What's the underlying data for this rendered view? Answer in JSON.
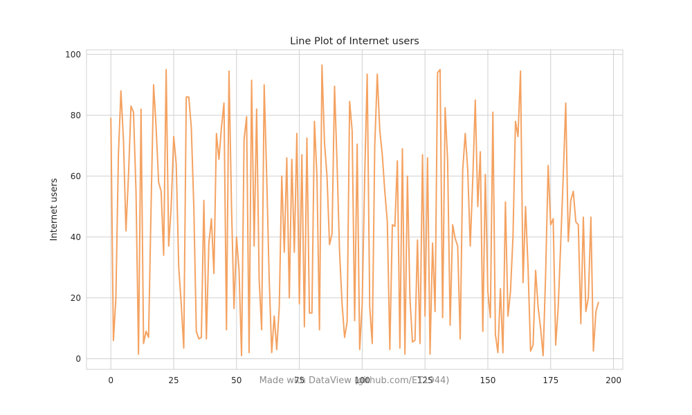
{
  "chart_data": {
    "type": "line",
    "title": "Line Plot of Internet users",
    "xlabel": "",
    "ylabel": "Internet users",
    "xlim": [
      -9.7,
      203.7
    ],
    "ylim": [
      -3.5,
      101.5
    ],
    "xticks": [
      0,
      25,
      50,
      75,
      100,
      125,
      150,
      175,
      200
    ],
    "yticks": [
      0,
      20,
      40,
      60,
      80,
      100
    ],
    "xtick_labels": [
      "0",
      "25",
      "50",
      "75",
      "100",
      "125",
      "150",
      "175",
      "200"
    ],
    "ytick_labels": [
      "0",
      "20",
      "40",
      "60",
      "80",
      "100"
    ],
    "grid": true,
    "line_color": "#f4a261",
    "series": [
      {
        "x": [
          0,
          1,
          2,
          3,
          4,
          5,
          6,
          7,
          8,
          9,
          10,
          11,
          12,
          13,
          14,
          15,
          16,
          17,
          18,
          19,
          20,
          21,
          22,
          23,
          24,
          25,
          26,
          27,
          28,
          29,
          30,
          31,
          32,
          33,
          34,
          35,
          36,
          37,
          38,
          39,
          40,
          41,
          42,
          43,
          44,
          45,
          46,
          47,
          48,
          49,
          50,
          51,
          52,
          53,
          54,
          55,
          56,
          57,
          58,
          59,
          60,
          61,
          62,
          63,
          64,
          65,
          66,
          67,
          68,
          69,
          70,
          71,
          72,
          73,
          74,
          75,
          76,
          77,
          78,
          79,
          80,
          81,
          82,
          83,
          84,
          85,
          86,
          87,
          88,
          89,
          90,
          91,
          92,
          93,
          94,
          95,
          96,
          97,
          98,
          99,
          100,
          101,
          102,
          103,
          104,
          105,
          106,
          107,
          108,
          109,
          110,
          111,
          112,
          113,
          114,
          115,
          116,
          117,
          118,
          119,
          120,
          121,
          122,
          123,
          124,
          125,
          126,
          127,
          128,
          129,
          130,
          131,
          132,
          133,
          134,
          135,
          136,
          137,
          138,
          139,
          140,
          141,
          142,
          143,
          144,
          145,
          146,
          147,
          148,
          149,
          150,
          151,
          152,
          153,
          154,
          155,
          156,
          157,
          158,
          159,
          160,
          161,
          162,
          163,
          164,
          165,
          166,
          167,
          168,
          169,
          170,
          171,
          172,
          173,
          174,
          175,
          176,
          177,
          178,
          179,
          180,
          181,
          182,
          183,
          184,
          185,
          186,
          187,
          188,
          189,
          190,
          191,
          192,
          193,
          194
        ],
        "y": [
          79,
          6,
          20,
          67,
          88,
          72,
          42,
          60,
          83,
          81,
          55,
          1.5,
          82,
          5,
          9,
          7,
          50,
          90,
          76,
          58,
          55,
          34,
          95,
          37,
          50,
          73,
          64,
          30,
          18,
          3.5,
          86,
          86,
          76,
          50,
          9,
          6.5,
          7,
          52,
          6.5,
          38,
          46,
          28,
          74,
          65.5,
          76,
          84,
          9.5,
          94.5,
          50,
          16.5,
          40,
          29,
          1,
          72,
          79.5,
          2,
          91.5,
          37,
          82,
          26,
          9.5,
          90,
          60,
          26,
          2,
          14,
          3,
          17,
          60,
          35,
          66,
          20,
          65.5,
          35,
          74,
          18,
          67,
          10.5,
          72.5,
          15,
          15,
          78,
          60,
          9.5,
          96.5,
          71,
          60,
          37.5,
          41,
          89.5,
          64,
          35,
          18,
          7,
          12,
          84.5,
          75,
          12.5,
          70.5,
          3,
          18,
          60,
          93.5,
          17,
          5,
          70,
          93.5,
          75,
          67,
          55,
          45,
          3,
          44,
          43.5,
          65,
          3.5,
          69,
          1.5,
          60,
          20,
          5.5,
          6,
          39,
          5,
          67,
          14,
          66,
          1.5,
          38,
          15.5,
          94,
          95,
          13.5,
          82.5,
          65,
          11,
          44,
          39.5,
          37,
          6.5,
          62,
          74,
          62,
          37,
          59,
          85,
          50,
          68,
          9,
          60.5,
          22,
          13.5,
          81,
          8,
          2,
          23,
          2,
          51.5,
          14,
          22,
          40,
          78,
          73,
          94.5,
          25,
          50,
          30,
          2.5,
          4.5,
          29,
          17,
          10,
          1,
          28,
          63.5,
          44,
          46,
          4.5,
          17,
          38,
          60,
          84,
          38.5,
          52,
          55,
          45,
          44,
          11.5,
          46.5,
          15.5,
          20,
          46.5,
          2.5,
          15.5,
          18.5
        ]
      }
    ]
  },
  "watermark": "Made with DataView (github.com/ET1944)"
}
